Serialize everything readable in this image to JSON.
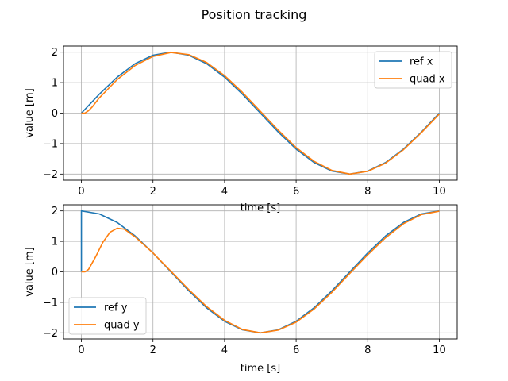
{
  "figure": {
    "title": "Position tracking"
  },
  "chart_data": [
    {
      "type": "line",
      "xlabel": "time [s]",
      "ylabel": "value [m]",
      "xlim": [
        -0.5,
        10.5
      ],
      "ylim": [
        -2.2,
        2.2
      ],
      "xticks": [
        0,
        2,
        4,
        6,
        8,
        10
      ],
      "yticks": [
        -2,
        -1,
        0,
        1,
        2
      ],
      "xtick_labels": [
        "0",
        "2",
        "4",
        "6",
        "8",
        "10"
      ],
      "ytick_labels": [
        "−2",
        "−1",
        "0",
        "1",
        "2"
      ],
      "grid": true,
      "legend": "upper-right",
      "series": [
        {
          "name": "ref x",
          "color": "#1f77b4",
          "x": [
            0,
            0.5,
            1,
            1.5,
            2,
            2.5,
            3,
            3.5,
            4,
            4.5,
            5,
            5.5,
            6,
            6.5,
            7,
            7.5,
            8,
            8.5,
            9,
            9.5,
            10
          ],
          "y": [
            0,
            0.62,
            1.18,
            1.62,
            1.9,
            2.0,
            1.9,
            1.62,
            1.18,
            0.62,
            0,
            -0.62,
            -1.18,
            -1.62,
            -1.9,
            -2.0,
            -1.9,
            -1.62,
            -1.18,
            -0.62,
            0
          ]
        },
        {
          "name": "quad x",
          "color": "#ff7f0e",
          "x": [
            0,
            0.1,
            0.2,
            0.3,
            0.5,
            1,
            1.5,
            2,
            2.5,
            3,
            3.5,
            4,
            4.5,
            5,
            5.5,
            6,
            6.5,
            7,
            7.5,
            8,
            8.5,
            9,
            9.5,
            10
          ],
          "y": [
            0,
            0.0,
            0.08,
            0.2,
            0.5,
            1.1,
            1.56,
            1.86,
            1.99,
            1.92,
            1.66,
            1.23,
            0.68,
            0.06,
            -0.56,
            -1.13,
            -1.58,
            -1.88,
            -2.0,
            -1.91,
            -1.64,
            -1.2,
            -0.64,
            -0.03
          ]
        }
      ]
    },
    {
      "type": "line",
      "xlabel": "time [s]",
      "ylabel": "value [m]",
      "xlim": [
        -0.5,
        10.5
      ],
      "ylim": [
        -2.2,
        2.2
      ],
      "xticks": [
        0,
        2,
        4,
        6,
        8,
        10
      ],
      "yticks": [
        -2,
        -1,
        0,
        1,
        2
      ],
      "xtick_labels": [
        "0",
        "2",
        "4",
        "6",
        "8",
        "10"
      ],
      "ytick_labels": [
        "−2",
        "−1",
        "0",
        "1",
        "2"
      ],
      "grid": true,
      "legend": "lower-left",
      "series": [
        {
          "name": "ref y",
          "color": "#1f77b4",
          "x": [
            0,
            0,
            0.5,
            1,
            1.5,
            2,
            2.5,
            3,
            3.5,
            4,
            4.5,
            5,
            5.5,
            6,
            6.5,
            7,
            7.5,
            8,
            8.5,
            9,
            9.5,
            10
          ],
          "y": [
            0,
            2.0,
            1.9,
            1.62,
            1.18,
            0.62,
            0,
            -0.62,
            -1.18,
            -1.62,
            -1.9,
            -2.0,
            -1.9,
            -1.62,
            -1.18,
            -0.62,
            0,
            0.62,
            1.18,
            1.62,
            1.9,
            2.0
          ]
        },
        {
          "name": "quad y",
          "color": "#ff7f0e",
          "x": [
            0,
            0.1,
            0.2,
            0.4,
            0.6,
            0.8,
            1.0,
            1.2,
            1.5,
            2,
            2.5,
            3,
            3.5,
            4,
            4.5,
            5,
            5.5,
            6,
            6.5,
            7,
            7.5,
            8,
            8.5,
            9,
            9.5,
            10
          ],
          "y": [
            0,
            0.0,
            0.08,
            0.5,
            0.97,
            1.3,
            1.43,
            1.4,
            1.15,
            0.62,
            0.02,
            -0.58,
            -1.14,
            -1.59,
            -1.89,
            -2.0,
            -1.91,
            -1.65,
            -1.22,
            -0.67,
            -0.05,
            0.56,
            1.12,
            1.58,
            1.88,
            1.99
          ]
        }
      ]
    }
  ]
}
